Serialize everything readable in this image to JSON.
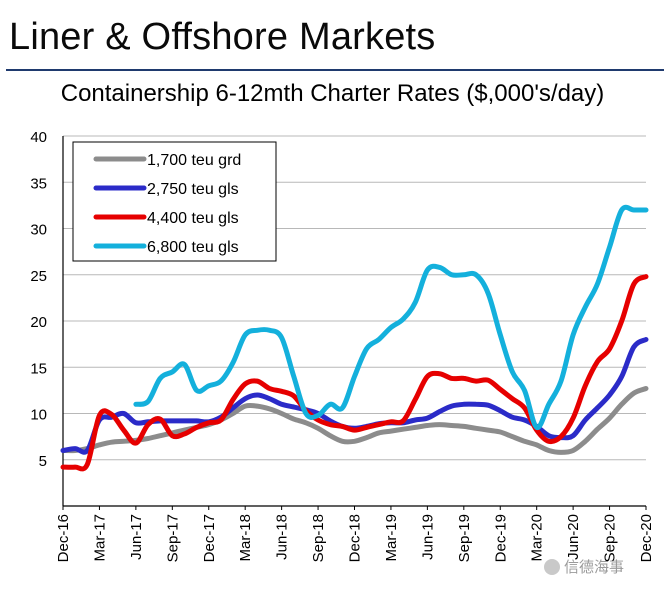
{
  "header": {
    "slide_title": "Liner & Offshore Markets"
  },
  "watermark": {
    "text": "信德海事"
  },
  "chart_data": {
    "type": "line",
    "title": "Containership 6-12mth Charter Rates ($,000's/day)",
    "xlabel": "",
    "ylabel": "",
    "ylim": [
      0,
      40
    ],
    "yticks": [
      5,
      10,
      15,
      20,
      25,
      30,
      35,
      40
    ],
    "xlim": [
      0,
      48
    ],
    "x_tick_positions": [
      0,
      3,
      6,
      9,
      12,
      15,
      18,
      21,
      24,
      27,
      30,
      33,
      36,
      39,
      42,
      45,
      48
    ],
    "x_tick_labels": [
      "Dec-16",
      "Mar-17",
      "Jun-17",
      "Sep-17",
      "Dec-17",
      "Mar-18",
      "Jun-18",
      "Sep-18",
      "Dec-18",
      "Mar-19",
      "Jun-19",
      "Sep-19",
      "Dec-19",
      "Mar-20",
      "Jun-20",
      "Sep-20",
      "Dec-20"
    ],
    "grid": "horizontal",
    "legend_position": "top-left",
    "series": [
      {
        "name": "1,700 teu grd",
        "color": "#8c8c8c",
        "x": [
          0,
          1,
          2,
          3,
          4,
          5,
          6,
          7,
          8,
          9,
          10,
          11,
          12,
          13,
          14,
          15,
          16,
          17,
          18,
          19,
          20,
          21,
          22,
          23,
          24,
          25,
          26,
          27,
          28,
          29,
          30,
          31,
          32,
          33,
          34,
          35,
          36,
          37,
          38,
          39,
          40,
          41,
          42,
          43,
          44,
          45,
          46,
          47,
          48
        ],
        "values": [
          6.0,
          6.0,
          6.2,
          6.6,
          6.9,
          7.0,
          7.1,
          7.3,
          7.6,
          7.9,
          8.2,
          8.5,
          8.8,
          9.3,
          10.0,
          10.8,
          10.8,
          10.5,
          10.0,
          9.4,
          9.0,
          8.4,
          7.6,
          7.0,
          7.0,
          7.4,
          7.9,
          8.1,
          8.3,
          8.5,
          8.7,
          8.8,
          8.7,
          8.6,
          8.4,
          8.2,
          8.0,
          7.5,
          7.0,
          6.6,
          6.0,
          5.8,
          6.0,
          7.0,
          8.3,
          9.5,
          11.0,
          12.2,
          12.7
        ]
      },
      {
        "name": "2,750 teu gls",
        "color": "#2b2bc8",
        "x": [
          0,
          1,
          2,
          3,
          4,
          5,
          6,
          7,
          8,
          9,
          10,
          11,
          12,
          13,
          14,
          15,
          16,
          17,
          18,
          19,
          20,
          21,
          22,
          23,
          24,
          25,
          26,
          27,
          28,
          29,
          30,
          31,
          32,
          33,
          34,
          35,
          36,
          37,
          38,
          39,
          40,
          41,
          42,
          43,
          44,
          45,
          46,
          47,
          48
        ],
        "values": [
          6.0,
          6.2,
          6.0,
          9.3,
          9.6,
          10.0,
          9.0,
          9.1,
          9.2,
          9.2,
          9.2,
          9.2,
          9.1,
          9.6,
          10.6,
          11.6,
          12.0,
          11.6,
          11.0,
          10.7,
          10.4,
          10.0,
          9.2,
          8.6,
          8.4,
          8.6,
          8.9,
          9.0,
          9.0,
          9.3,
          9.5,
          10.2,
          10.8,
          11.0,
          11.0,
          10.9,
          10.3,
          9.6,
          9.3,
          8.6,
          7.6,
          7.4,
          7.6,
          9.3,
          10.6,
          12.0,
          14.0,
          17.2,
          18.0
        ]
      },
      {
        "name": "4,400 teu gls",
        "color": "#e60000",
        "x": [
          0,
          1,
          2,
          3,
          4,
          5,
          6,
          7,
          8,
          9,
          10,
          11,
          12,
          13,
          14,
          15,
          16,
          17,
          18,
          19,
          20,
          21,
          22,
          23,
          24,
          25,
          26,
          27,
          28,
          29,
          30,
          31,
          32,
          33,
          34,
          35,
          36,
          37,
          38,
          39,
          40,
          41,
          42,
          43,
          44,
          45,
          46,
          47,
          48
        ],
        "values": [
          4.2,
          4.2,
          4.5,
          9.8,
          9.9,
          8.2,
          6.8,
          8.8,
          9.4,
          7.6,
          7.8,
          8.5,
          9.0,
          9.3,
          11.5,
          13.2,
          13.5,
          12.7,
          12.4,
          11.9,
          10.3,
          9.3,
          8.8,
          8.6,
          8.2,
          8.5,
          8.8,
          9.1,
          9.2,
          11.5,
          14.0,
          14.3,
          13.8,
          13.8,
          13.5,
          13.6,
          12.6,
          11.6,
          10.6,
          8.2,
          7.0,
          7.5,
          9.5,
          13.0,
          15.6,
          17.0,
          20.0,
          24.0,
          24.8
        ]
      },
      {
        "name": "6,800 teu gls",
        "color": "#14b0dc",
        "x": [
          6,
          7,
          8,
          9,
          10,
          11,
          12,
          13,
          14,
          15,
          16,
          17,
          18,
          19,
          20,
          21,
          22,
          23,
          24,
          25,
          26,
          27,
          28,
          29,
          30,
          31,
          32,
          33,
          34,
          35,
          36,
          37,
          38,
          39,
          40,
          41,
          42,
          43,
          44,
          45,
          46,
          47,
          48
        ],
        "values": [
          11.0,
          11.3,
          13.8,
          14.5,
          15.3,
          12.5,
          13.0,
          13.5,
          15.5,
          18.5,
          19.0,
          19.0,
          18.2,
          14.0,
          10.0,
          9.8,
          11.0,
          10.6,
          14.0,
          17.0,
          18.0,
          19.3,
          20.2,
          22.0,
          25.5,
          25.8,
          25.0,
          25.0,
          25.0,
          23.0,
          18.5,
          14.5,
          12.5,
          8.5,
          11.0,
          13.5,
          18.5,
          21.5,
          24.0,
          28.0,
          32.0,
          32.0,
          32.0
        ]
      }
    ]
  }
}
